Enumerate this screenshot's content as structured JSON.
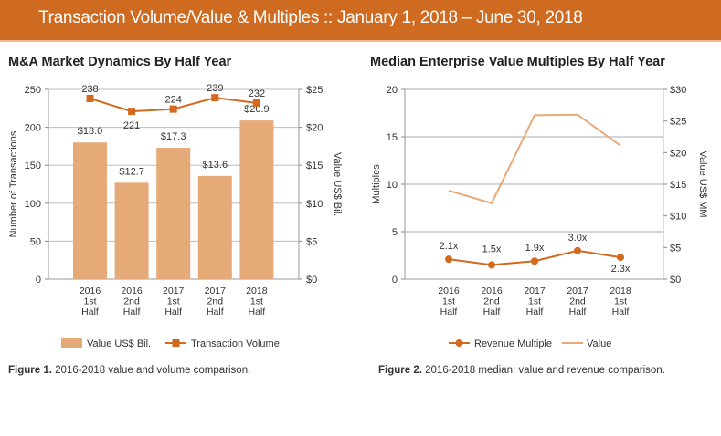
{
  "banner": {
    "title": "Transaction Volume/Value & Multiples  ::  January 1, 2018 – June 30, 2018"
  },
  "colors": {
    "banner": "#cf6a21",
    "bar": "#e5aa78",
    "line": "#d2691e",
    "value_line": "#e8a878",
    "grid": "#bdbdbd"
  },
  "chart_data": [
    {
      "type": "bar",
      "title": "M&A Market Dynamics By Half Year",
      "categories": [
        [
          "2016",
          "1st",
          "Half"
        ],
        [
          "2016",
          "2nd",
          "Half"
        ],
        [
          "2017",
          "1st",
          "Half"
        ],
        [
          "2017",
          "2nd",
          "Half"
        ],
        [
          "2018",
          "1st",
          "Half"
        ]
      ],
      "ylabel": "Number of Transactions",
      "y2label": "Value US$ Bil.",
      "ylim": [
        0,
        250
      ],
      "y2lim": [
        0,
        25
      ],
      "yticks": [
        0,
        50,
        100,
        150,
        200,
        250
      ],
      "y2ticks": [
        "$0",
        "$5",
        "$10",
        "$15",
        "$20",
        "$25"
      ],
      "series": [
        {
          "name": "Value US$ Bil.",
          "kind": "bar",
          "axis": "right",
          "values": [
            18.0,
            12.7,
            17.3,
            13.6,
            20.9
          ],
          "labels": [
            "$18.0",
            "$12.7",
            "$17.3",
            "$13.6",
            "$20.9"
          ]
        },
        {
          "name": "Transaction Volume",
          "kind": "line",
          "axis": "left",
          "marker": "square",
          "values": [
            238,
            221,
            224,
            239,
            232
          ],
          "labels": [
            "238",
            "221",
            "224",
            "239",
            "232"
          ]
        }
      ],
      "legend": "bottom",
      "caption_bold": "Figure 1.",
      "caption": " 2016-2018 value and volume comparison."
    },
    {
      "type": "line",
      "title": "Median Enterprise Value Multiples By Half Year",
      "categories": [
        [
          "2016",
          "1st",
          "Half"
        ],
        [
          "2016",
          "2nd",
          "Half"
        ],
        [
          "2017",
          "1st",
          "Half"
        ],
        [
          "2017",
          "2nd",
          "Half"
        ],
        [
          "2018",
          "1st",
          "Half"
        ]
      ],
      "ylabel": "Multiples",
      "y2label": "Value US$ MM",
      "ylim": [
        0,
        20
      ],
      "y2lim": [
        0,
        30
      ],
      "yticks": [
        0,
        5,
        10,
        15,
        20
      ],
      "y2ticks": [
        "$0",
        "$5",
        "$10",
        "$15",
        "$20",
        "$25",
        "$30"
      ],
      "series": [
        {
          "name": "Revenue Multiple",
          "kind": "line",
          "axis": "left",
          "marker": "circle",
          "values": [
            2.1,
            1.5,
            1.9,
            3.0,
            2.3
          ],
          "labels": [
            "2.1x",
            "1.5x",
            "1.9x",
            "3.0x",
            "2.3x"
          ]
        },
        {
          "name": "Value",
          "kind": "line",
          "axis": "right",
          "marker": "none",
          "values": [
            14.0,
            12.0,
            25.9,
            26.0,
            21.1
          ]
        }
      ],
      "legend": "bottom",
      "caption_bold": "Figure 2.",
      "caption": " 2016-2018 median: value and revenue comparison."
    }
  ]
}
